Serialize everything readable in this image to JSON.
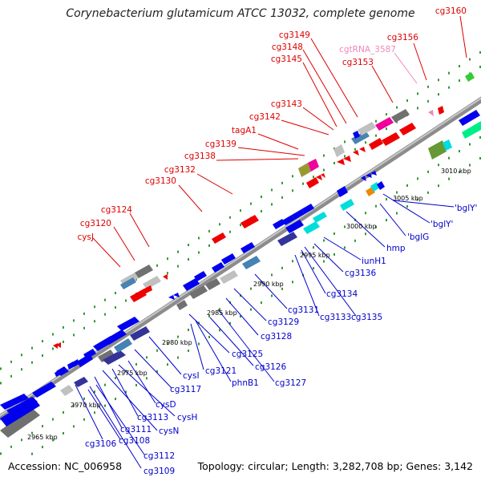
{
  "title": "Corynebacterium glutamicum ATCC 13032, complete genome",
  "footer": {
    "accession": "Accession: NC_006958",
    "summary": "Topology: circular; Length: 3,282,708 bp; Genes: 3,142"
  },
  "colors": {
    "red_label": "#dd0000",
    "blue_label": "#0000cc",
    "pink_label": "#ee88bb",
    "backbone": "#8c8c8c",
    "dots": "#339933",
    "gene_blue": "#0000ee",
    "gene_red": "#ee0000",
    "gene_gray": "#707070",
    "gene_navy": "#333399",
    "gene_steel": "#4682b4",
    "gene_cyan": "#00dddd",
    "gene_magenta": "#ee0099",
    "gene_olive": "#999933"
  },
  "kbp_ticks": [
    "2965 kbp",
    "2970 kbp",
    "2975 kbp",
    "2980 kbp",
    "2985 kbp",
    "2990 kbp",
    "2995 kbp",
    "3000 kbp",
    "3005 kbp",
    "3010 kbp"
  ],
  "top_labels": [
    "cysJ",
    "cg3120",
    "cg3124",
    "cg3130",
    "cg3132",
    "cg3138",
    "cg3139",
    "tagA1",
    "cg3142",
    "cg3143",
    "cg3145",
    "cg3148",
    "cg3149",
    "cgtRNA_3587",
    "cg3153",
    "cg3156",
    "cg3160"
  ],
  "bottom_labels": [
    "cg3106",
    "cg3109",
    "cg3108",
    "cg3112",
    "cg3111",
    "cysN",
    "cg3113",
    "cysH",
    "cysD",
    "cg3117",
    "cysI",
    "cg3121",
    "phnB1",
    "cg3125",
    "cg3126",
    "cg3127",
    "cg3128",
    "cg3129",
    "cg3131",
    "cg3133",
    "cg3134",
    "cg3135",
    "cg3136",
    "iunH1",
    "hmp",
    "'bglG",
    "'bglY'",
    "'bglY'"
  ]
}
